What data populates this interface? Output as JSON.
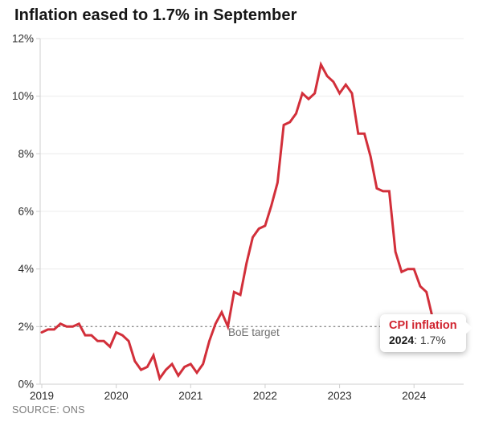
{
  "title": "Inflation eased to 1.7% in September",
  "source": "SOURCE: ONS",
  "target_label": "BoE target",
  "annotation": {
    "series_label": "CPI inflation",
    "year": "2024",
    "value_rest": ": 1.7%"
  },
  "colors": {
    "line": "#d22f3a",
    "grid": "#ececec",
    "axis": "#cfcfcf",
    "target_line": "#8c8c8c",
    "tick_text": "#2b2b2b",
    "accent_text": "#d0232e"
  },
  "chart_data": {
    "type": "line",
    "title": "Inflation eased to 1.7% in September",
    "xlabel": "",
    "ylabel": "",
    "x_unit": "month",
    "x_range": [
      "2019-01",
      "2024-09"
    ],
    "x_tick_labels": [
      "2019",
      "2020",
      "2021",
      "2022",
      "2023",
      "2024"
    ],
    "y_tick_labels": [
      "0%",
      "2%",
      "4%",
      "6%",
      "8%",
      "10%",
      "12%"
    ],
    "ylim": [
      0,
      12
    ],
    "grid": true,
    "legend": false,
    "reference_line": {
      "y": 2,
      "label": "BoE target"
    },
    "annotation": {
      "label": "CPI inflation",
      "text": "2024: 1.7%",
      "x": "2024-09",
      "y": 1.7
    },
    "series": [
      {
        "name": "CPI inflation",
        "values": [
          1.8,
          1.9,
          1.9,
          2.1,
          2.0,
          2.0,
          2.1,
          1.7,
          1.7,
          1.5,
          1.5,
          1.3,
          1.8,
          1.7,
          1.5,
          0.8,
          0.5,
          0.6,
          1.0,
          0.2,
          0.5,
          0.7,
          0.3,
          0.6,
          0.7,
          0.4,
          0.7,
          1.5,
          2.1,
          2.5,
          2.0,
          3.2,
          3.1,
          4.2,
          5.1,
          5.4,
          5.5,
          6.2,
          7.0,
          9.0,
          9.1,
          9.4,
          10.1,
          9.9,
          10.1,
          11.1,
          10.7,
          10.5,
          10.1,
          10.4,
          10.1,
          8.7,
          8.7,
          7.9,
          6.8,
          6.7,
          6.7,
          4.6,
          3.9,
          4.0,
          4.0,
          3.4,
          3.2,
          2.3,
          2.0,
          2.0,
          2.2,
          2.2,
          1.7
        ]
      }
    ]
  }
}
